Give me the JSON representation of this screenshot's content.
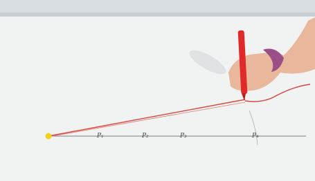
{
  "labels": [
    "P₁",
    "P₂",
    "P₃",
    "P₄"
  ]
}
